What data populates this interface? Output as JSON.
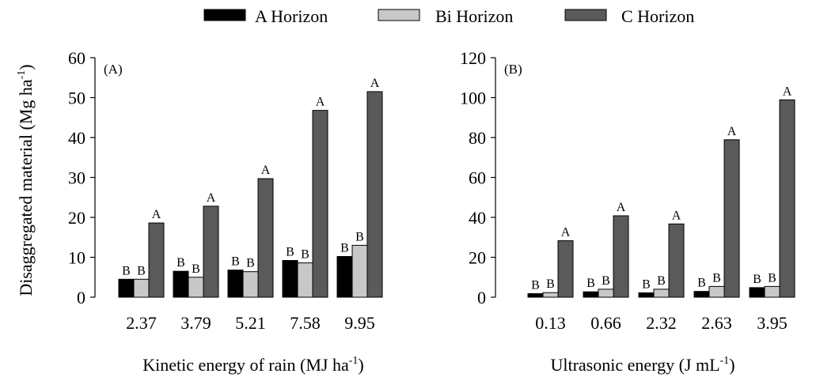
{
  "legend": {
    "items": [
      {
        "label": "A Horizon",
        "color": "#000000"
      },
      {
        "label": "Bi Horizon",
        "color": "#c8c8c8"
      },
      {
        "label": "C Horizon",
        "color": "#5a5a5a"
      }
    ]
  },
  "shared_ylabel": {
    "text": "Disaggregated material (Mg ha",
    "sup": "-1",
    "tail": ")"
  },
  "chart_data": [
    {
      "type": "bar",
      "panel_label": "(A)",
      "categories": [
        "2.37",
        "3.79",
        "5.21",
        "7.58",
        "9.95"
      ],
      "xlabel": {
        "text": "Kinetic energy of rain (MJ ha",
        "sup": "-1",
        "tail": ")"
      },
      "ylim": [
        0,
        60
      ],
      "yticks": [
        0,
        10,
        20,
        30,
        40,
        50,
        60
      ],
      "series": [
        {
          "name": "A Horizon",
          "values": [
            4.5,
            6.5,
            6.8,
            9.2,
            10.2
          ],
          "letters": [
            "B",
            "B",
            "B",
            "B",
            "B"
          ]
        },
        {
          "name": "Bi Horizon",
          "values": [
            4.5,
            5.0,
            6.4,
            8.6,
            13.0
          ],
          "letters": [
            "B",
            "B",
            "B",
            "B",
            "B"
          ]
        },
        {
          "name": "C Horizon",
          "values": [
            18.6,
            22.8,
            29.7,
            46.8,
            51.5
          ],
          "letters": [
            "A",
            "A",
            "A",
            "A",
            "A"
          ]
        }
      ]
    },
    {
      "type": "bar",
      "panel_label": "(B)",
      "categories": [
        "0.13",
        "0.66",
        "2.32",
        "2.63",
        "3.95"
      ],
      "xlabel": {
        "text": "Ultrasonic energy (J mL",
        "sup": "-1",
        "tail": ")"
      },
      "ylim": [
        0,
        120
      ],
      "yticks": [
        0,
        20,
        40,
        60,
        80,
        100,
        120
      ],
      "series": [
        {
          "name": "A Horizon",
          "values": [
            1.8,
            2.7,
            2.2,
            2.9,
            4.8
          ],
          "letters": [
            "B",
            "B",
            "B",
            "B",
            "B"
          ]
        },
        {
          "name": "Bi Horizon",
          "values": [
            2.3,
            4.0,
            4.0,
            5.4,
            5.4
          ],
          "letters": [
            "B",
            "B",
            "B",
            "B",
            "B"
          ]
        },
        {
          "name": "C Horizon",
          "values": [
            28.3,
            40.8,
            36.7,
            78.9,
            98.9
          ],
          "letters": [
            "A",
            "A",
            "A",
            "A",
            "A"
          ]
        }
      ]
    }
  ]
}
